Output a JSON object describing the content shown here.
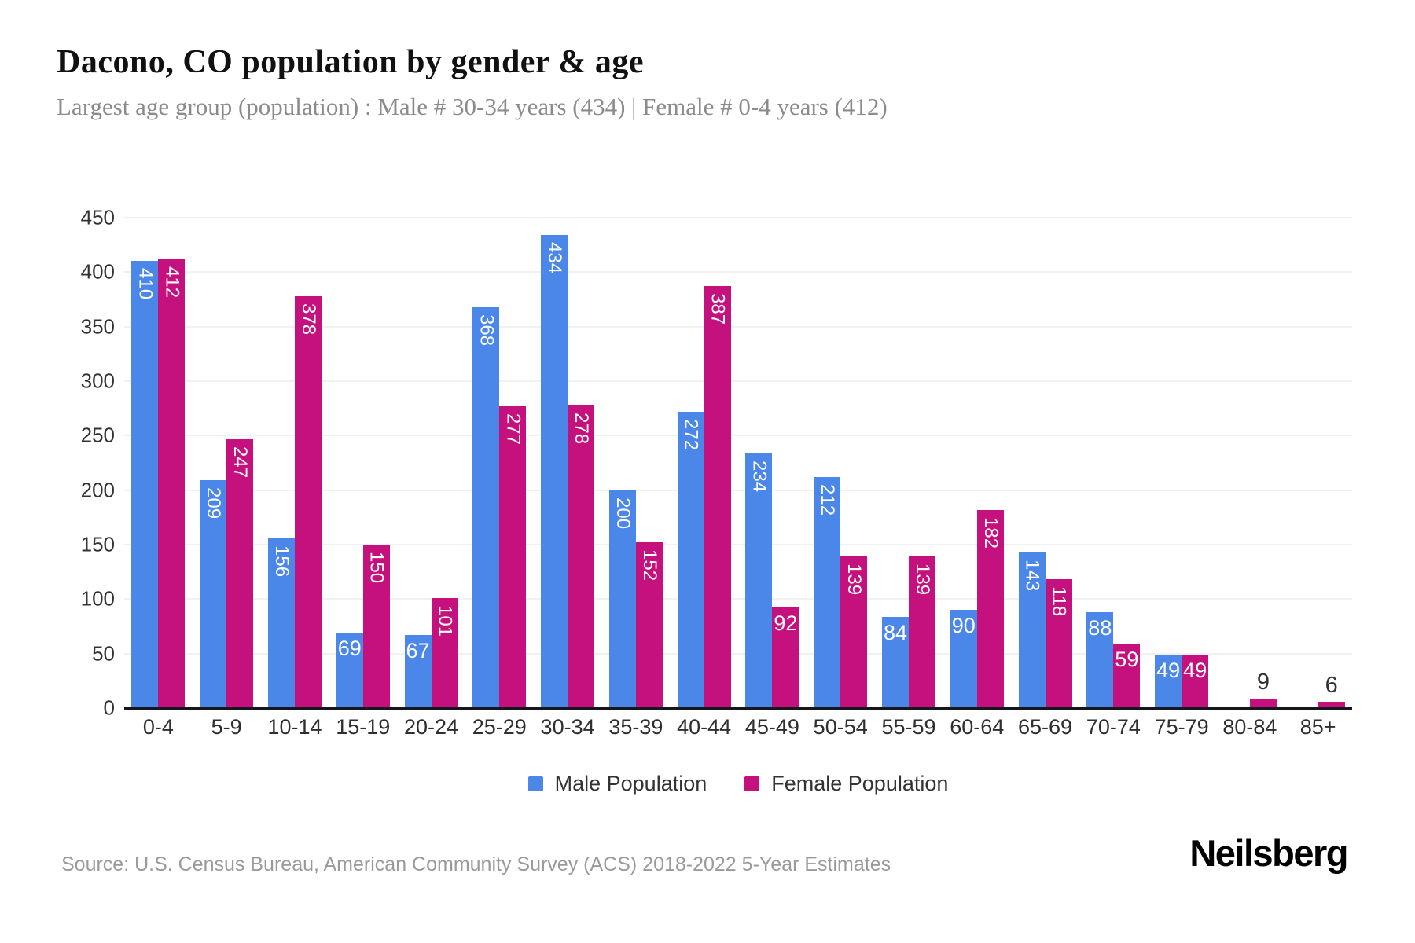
{
  "header": {
    "title": "Dacono, CO population by gender & age",
    "subtitle": "Largest age group (population) : Male # 30-34 years (434) | Female # 0-4 years (412)"
  },
  "footer": {
    "source": "Source: U.S. Census Bureau, American Community Survey (ACS) 2018-2022 5-Year Estimates",
    "logo": "Neilsberg"
  },
  "colors": {
    "male": "#4a87e9",
    "female": "#c5117e",
    "grid": "#f1f1f1",
    "baseline": "#16161d",
    "axis_text": "#333333",
    "bar_label": "#ffffff"
  },
  "chart_data": {
    "type": "bar",
    "title": "Dacono, CO population by gender & age",
    "xlabel": "",
    "ylabel": "",
    "categories": [
      "0-4",
      "5-9",
      "10-14",
      "15-19",
      "20-24",
      "25-29",
      "30-34",
      "35-39",
      "40-44",
      "45-49",
      "50-54",
      "55-59",
      "60-64",
      "65-69",
      "70-74",
      "75-79",
      "80-84",
      "85+"
    ],
    "series": [
      {
        "name": "Male Population",
        "color": "#4a87e9",
        "values": [
          410,
          209,
          156,
          69,
          67,
          368,
          434,
          200,
          272,
          234,
          212,
          84,
          90,
          143,
          88,
          49,
          0,
          0
        ]
      },
      {
        "name": "Female Population",
        "color": "#c5117e",
        "values": [
          412,
          247,
          378,
          150,
          101,
          277,
          278,
          152,
          387,
          92,
          139,
          139,
          182,
          118,
          59,
          49,
          9,
          6
        ]
      }
    ],
    "ylim": [
      0,
      450
    ],
    "yticks": [
      0,
      50,
      100,
      150,
      200,
      250,
      300,
      350,
      400,
      450
    ],
    "grid": true,
    "legend_position": "bottom"
  }
}
